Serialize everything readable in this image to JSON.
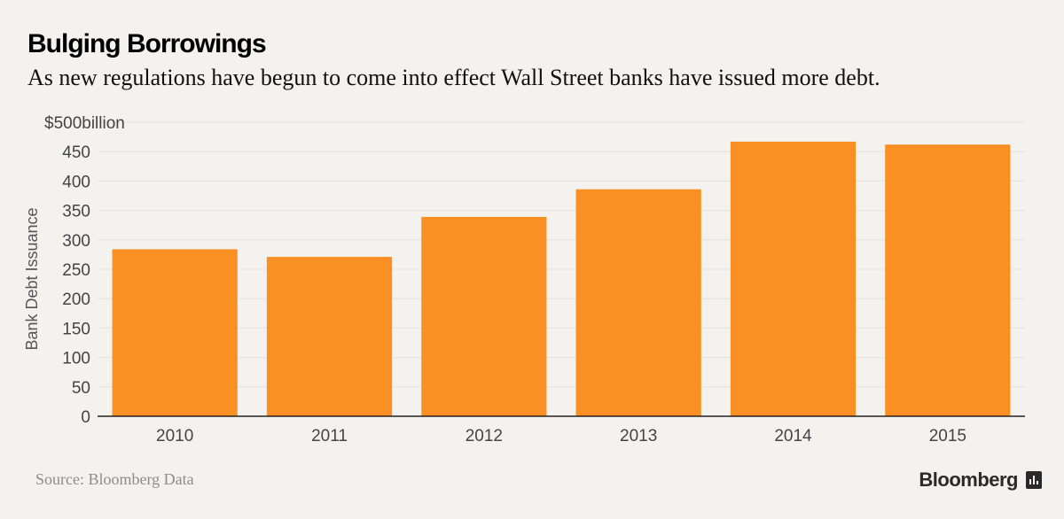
{
  "header": {
    "title": "Bulging Borrowings",
    "subtitle": "As new regulations have begun to come into effect Wall Street banks have issued more debt."
  },
  "footer": {
    "source": "Source: Bloomberg Data",
    "brand": "Bloomberg",
    "brand_icon": "bar-chart-icon"
  },
  "colors": {
    "bar": "#fa8f24",
    "background": "#f3f2ee",
    "gridline": "#e3e2de",
    "axis": "#222222",
    "tick_text": "#444444"
  },
  "chart_data": {
    "type": "bar",
    "title": "Bulging Borrowings",
    "subtitle": "As new regulations have begun to come into effect Wall Street banks have issued more debt.",
    "xlabel": "",
    "ylabel": "Bank Debt Issuance",
    "categories": [
      "2010",
      "2011",
      "2012",
      "2013",
      "2014",
      "2015"
    ],
    "series": [
      {
        "values": [
          284,
          271,
          339,
          386,
          467,
          462
        ]
      }
    ],
    "ylim": [
      0,
      500
    ],
    "yticks": [
      0,
      50,
      100,
      150,
      200,
      250,
      300,
      350,
      400,
      450,
      500
    ],
    "ytick_labels": [
      "0",
      "50",
      "100",
      "150",
      "200",
      "250",
      "300",
      "350",
      "400",
      "450",
      "$500billion"
    ],
    "grid": true,
    "legend": "none"
  }
}
